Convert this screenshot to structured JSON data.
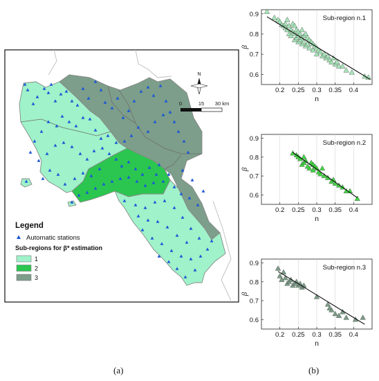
{
  "panel_a": {
    "label": "(a)",
    "legend": {
      "title": "Legend",
      "station_label": "Automatic stations",
      "subregion_title": "Sub-regions for β* estimation",
      "items": [
        {
          "label": "1",
          "color": "#9ff2c9"
        },
        {
          "label": "2",
          "color": "#2bc650"
        },
        {
          "label": "3",
          "color": "#7d9e8a"
        }
      ]
    },
    "scale_bar": {
      "ticks": [
        "0",
        "15",
        "30 km"
      ]
    },
    "north_label": "N",
    "colors": {
      "sub1": "#9ff2c9",
      "sub2": "#2bc650",
      "sub3": "#7d9e8a",
      "station": "#1c57d6",
      "border": "#888888"
    }
  },
  "panel_b": {
    "label": "(b)"
  },
  "chart_data": [
    {
      "type": "scatter",
      "title": "Sub-region n.1",
      "xlabel": "n",
      "ylabel": "β",
      "xlim": [
        0.15,
        0.45
      ],
      "ylim": [
        0.55,
        0.92
      ],
      "xticks": [
        "0.2",
        "0.25",
        "0.3",
        "0.35",
        "0.4"
      ],
      "yticks": [
        "0.6",
        "0.7",
        "0.8",
        "0.9"
      ],
      "marker_color": "#9fe3b4",
      "points": [
        [
          0.165,
          0.91
        ],
        [
          0.185,
          0.88
        ],
        [
          0.195,
          0.87
        ],
        [
          0.2,
          0.86
        ],
        [
          0.205,
          0.845
        ],
        [
          0.21,
          0.84
        ],
        [
          0.215,
          0.85
        ],
        [
          0.215,
          0.83
        ],
        [
          0.22,
          0.87
        ],
        [
          0.22,
          0.82
        ],
        [
          0.225,
          0.84
        ],
        [
          0.225,
          0.8
        ],
        [
          0.23,
          0.82
        ],
        [
          0.23,
          0.79
        ],
        [
          0.235,
          0.85
        ],
        [
          0.235,
          0.81
        ],
        [
          0.24,
          0.84
        ],
        [
          0.24,
          0.8
        ],
        [
          0.24,
          0.77
        ],
        [
          0.245,
          0.82
        ],
        [
          0.245,
          0.78
        ],
        [
          0.25,
          0.81
        ],
        [
          0.25,
          0.79
        ],
        [
          0.25,
          0.76
        ],
        [
          0.255,
          0.8
        ],
        [
          0.255,
          0.77
        ],
        [
          0.26,
          0.82
        ],
        [
          0.26,
          0.78
        ],
        [
          0.26,
          0.75
        ],
        [
          0.265,
          0.79
        ],
        [
          0.265,
          0.76
        ],
        [
          0.27,
          0.8
        ],
        [
          0.27,
          0.74
        ],
        [
          0.275,
          0.78
        ],
        [
          0.275,
          0.75
        ],
        [
          0.28,
          0.77
        ],
        [
          0.28,
          0.73
        ],
        [
          0.285,
          0.76
        ],
        [
          0.29,
          0.75
        ],
        [
          0.29,
          0.72
        ],
        [
          0.295,
          0.74
        ],
        [
          0.3,
          0.73
        ],
        [
          0.3,
          0.7
        ],
        [
          0.305,
          0.72
        ],
        [
          0.31,
          0.71
        ],
        [
          0.315,
          0.69
        ],
        [
          0.32,
          0.7
        ],
        [
          0.325,
          0.68
        ],
        [
          0.33,
          0.69
        ],
        [
          0.335,
          0.67
        ],
        [
          0.34,
          0.66
        ],
        [
          0.345,
          0.68
        ],
        [
          0.35,
          0.65
        ],
        [
          0.355,
          0.66
        ],
        [
          0.36,
          0.64
        ],
        [
          0.37,
          0.64
        ],
        [
          0.38,
          0.62
        ],
        [
          0.395,
          0.61
        ],
        [
          0.43,
          0.59
        ],
        [
          0.44,
          0.585
        ]
      ],
      "fit": [
        [
          0.165,
          0.885
        ],
        [
          0.445,
          0.575
        ]
      ]
    },
    {
      "type": "scatter",
      "title": "Sub-region n.2",
      "xlabel": "n",
      "ylabel": "β",
      "xlim": [
        0.15,
        0.45
      ],
      "ylim": [
        0.55,
        0.92
      ],
      "xticks": [
        "0.2",
        "0.25",
        "0.3",
        "0.35",
        "0.4"
      ],
      "yticks": [
        "0.6",
        "0.7",
        "0.8",
        "0.9"
      ],
      "marker_color": "#2fd22f",
      "points": [
        [
          0.235,
          0.82
        ],
        [
          0.245,
          0.81
        ],
        [
          0.25,
          0.8
        ],
        [
          0.255,
          0.79
        ],
        [
          0.26,
          0.76
        ],
        [
          0.265,
          0.8
        ],
        [
          0.265,
          0.77
        ],
        [
          0.27,
          0.78
        ],
        [
          0.275,
          0.75
        ],
        [
          0.28,
          0.74
        ],
        [
          0.285,
          0.77
        ],
        [
          0.29,
          0.73
        ],
        [
          0.29,
          0.76
        ],
        [
          0.295,
          0.75
        ],
        [
          0.3,
          0.74
        ],
        [
          0.305,
          0.72
        ],
        [
          0.31,
          0.71
        ],
        [
          0.315,
          0.74
        ],
        [
          0.32,
          0.7
        ],
        [
          0.33,
          0.69
        ],
        [
          0.34,
          0.67
        ],
        [
          0.345,
          0.68
        ],
        [
          0.35,
          0.66
        ],
        [
          0.36,
          0.65
        ],
        [
          0.37,
          0.64
        ],
        [
          0.38,
          0.62
        ],
        [
          0.39,
          0.62
        ],
        [
          0.41,
          0.58
        ]
      ],
      "fit": [
        [
          0.235,
          0.825
        ],
        [
          0.41,
          0.585
        ]
      ]
    },
    {
      "type": "scatter",
      "title": "Sub-region n.3",
      "xlabel": "n",
      "ylabel": "β",
      "xlim": [
        0.15,
        0.45
      ],
      "ylim": [
        0.55,
        0.92
      ],
      "xticks": [
        "0.2",
        "0.25",
        "0.3",
        "0.35",
        "0.4"
      ],
      "yticks": [
        "0.6",
        "0.7",
        "0.8",
        "0.9"
      ],
      "marker_color": "#6e8f7a",
      "points": [
        [
          0.195,
          0.87
        ],
        [
          0.2,
          0.83
        ],
        [
          0.205,
          0.81
        ],
        [
          0.21,
          0.85
        ],
        [
          0.215,
          0.82
        ],
        [
          0.22,
          0.79
        ],
        [
          0.225,
          0.8
        ],
        [
          0.23,
          0.81
        ],
        [
          0.235,
          0.78
        ],
        [
          0.24,
          0.79
        ],
        [
          0.245,
          0.8
        ],
        [
          0.25,
          0.78
        ],
        [
          0.255,
          0.79
        ],
        [
          0.26,
          0.77
        ],
        [
          0.265,
          0.78
        ],
        [
          0.3,
          0.72
        ],
        [
          0.33,
          0.68
        ],
        [
          0.335,
          0.66
        ],
        [
          0.34,
          0.65
        ],
        [
          0.35,
          0.63
        ],
        [
          0.36,
          0.62
        ],
        [
          0.37,
          0.64
        ],
        [
          0.38,
          0.61
        ],
        [
          0.405,
          0.6
        ],
        [
          0.425,
          0.61
        ]
      ],
      "fit": [
        [
          0.195,
          0.855
        ],
        [
          0.43,
          0.575
        ]
      ]
    }
  ]
}
